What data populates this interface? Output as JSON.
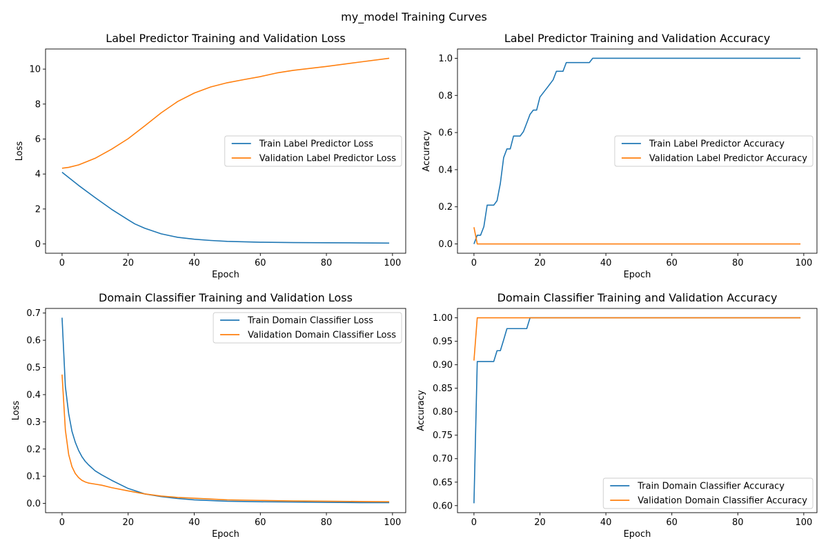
{
  "figure": {
    "suptitle": "my_model Training Curves",
    "colors": {
      "train": "#1f77b4",
      "validation": "#ff7f0e",
      "axis": "#000000",
      "legend_border": "#cccccc"
    }
  },
  "chart_data": [
    {
      "type": "line",
      "title": "Label Predictor Training and Validation Loss",
      "xlabel": "Epoch",
      "ylabel": "Loss",
      "xlim": [
        -5,
        104
      ],
      "ylim": [
        -0.53,
        11.15
      ],
      "xticks": [
        0,
        20,
        40,
        60,
        80,
        100
      ],
      "xtick_labels": [
        "0",
        "20",
        "40",
        "60",
        "80",
        "100"
      ],
      "yticks": [
        0,
        2,
        4,
        6,
        8,
        10
      ],
      "ytick_labels": [
        "0",
        "2",
        "4",
        "6",
        "8",
        "10"
      ],
      "grid": false,
      "legend_position": "center-right",
      "series": [
        {
          "name": "Train Label Predictor Loss",
          "x": [
            0,
            2,
            5,
            10,
            15,
            20,
            22,
            25,
            30,
            35,
            40,
            45,
            50,
            60,
            70,
            80,
            90,
            99
          ],
          "y": [
            4.1,
            3.8,
            3.35,
            2.65,
            1.98,
            1.38,
            1.15,
            0.9,
            0.58,
            0.38,
            0.27,
            0.2,
            0.15,
            0.1,
            0.08,
            0.07,
            0.06,
            0.05
          ]
        },
        {
          "name": "Validation Label Predictor Loss",
          "x": [
            0,
            2,
            5,
            10,
            15,
            20,
            25,
            30,
            35,
            40,
            45,
            50,
            55,
            60,
            65,
            70,
            80,
            90,
            99
          ],
          "y": [
            4.33,
            4.38,
            4.52,
            4.9,
            5.42,
            6.02,
            6.75,
            7.5,
            8.15,
            8.63,
            8.98,
            9.22,
            9.4,
            9.57,
            9.78,
            9.93,
            10.15,
            10.4,
            10.62
          ]
        }
      ]
    },
    {
      "type": "line",
      "title": "Label Predictor Training and Validation Accuracy",
      "xlabel": "Epoch",
      "ylabel": "Accuracy",
      "xlim": [
        -5,
        104
      ],
      "ylim": [
        -0.05,
        1.05
      ],
      "xticks": [
        0,
        20,
        40,
        60,
        80,
        100
      ],
      "xtick_labels": [
        "0",
        "20",
        "40",
        "60",
        "80",
        "100"
      ],
      "yticks": [
        0.0,
        0.2,
        0.4,
        0.6,
        0.8,
        1.0
      ],
      "ytick_labels": [
        "0.0",
        "0.2",
        "0.4",
        "0.6",
        "0.8",
        "1.0"
      ],
      "grid": false,
      "legend_position": "center-right",
      "series": [
        {
          "name": "Train Label Predictor Accuracy",
          "x": [
            0,
            1,
            2,
            3,
            4,
            5,
            6,
            7,
            8,
            9,
            10,
            11,
            12,
            13,
            14,
            15,
            16,
            17,
            18,
            19,
            20,
            22,
            24,
            25,
            26,
            27,
            28,
            29,
            30,
            31,
            32,
            33,
            34,
            35,
            36,
            99
          ],
          "y": [
            0.0,
            0.047,
            0.047,
            0.093,
            0.209,
            0.209,
            0.209,
            0.233,
            0.326,
            0.465,
            0.512,
            0.512,
            0.581,
            0.581,
            0.581,
            0.605,
            0.651,
            0.698,
            0.721,
            0.721,
            0.791,
            0.837,
            0.884,
            0.93,
            0.93,
            0.93,
            0.977,
            0.977,
            0.977,
            0.977,
            0.977,
            0.977,
            0.977,
            0.977,
            1.0,
            1.0
          ]
        },
        {
          "name": "Validation Label Predictor Accuracy",
          "x": [
            0,
            1,
            2,
            99
          ],
          "y": [
            0.09,
            0.0,
            0.0,
            0.0
          ]
        }
      ]
    },
    {
      "type": "line",
      "title": "Domain Classifier Training and Validation Loss",
      "xlabel": "Epoch",
      "ylabel": "Loss",
      "xlim": [
        -5,
        104
      ],
      "ylim": [
        -0.034,
        0.717
      ],
      "xticks": [
        0,
        20,
        40,
        60,
        80,
        100
      ],
      "xtick_labels": [
        "0",
        "20",
        "40",
        "60",
        "80",
        "100"
      ],
      "yticks": [
        0.0,
        0.1,
        0.2,
        0.3,
        0.4,
        0.5,
        0.6,
        0.7
      ],
      "ytick_labels": [
        "0.0",
        "0.1",
        "0.2",
        "0.3",
        "0.4",
        "0.5",
        "0.6",
        "0.7"
      ],
      "grid": false,
      "legend_position": "top-right",
      "series": [
        {
          "name": "Train Domain Classifier Loss",
          "x": [
            0,
            1,
            2,
            3,
            4,
            5,
            6,
            7,
            8,
            10,
            12,
            15,
            20,
            25,
            30,
            35,
            40,
            50,
            60,
            70,
            80,
            90,
            99
          ],
          "y": [
            0.683,
            0.43,
            0.33,
            0.265,
            0.225,
            0.195,
            0.172,
            0.155,
            0.142,
            0.12,
            0.105,
            0.085,
            0.055,
            0.035,
            0.025,
            0.018,
            0.013,
            0.008,
            0.006,
            0.005,
            0.004,
            0.003,
            0.003
          ]
        },
        {
          "name": "Validation Domain Classifier Loss",
          "x": [
            0,
            1,
            2,
            3,
            4,
            5,
            6,
            7,
            8,
            10,
            12,
            15,
            20,
            25,
            30,
            35,
            40,
            50,
            60,
            70,
            80,
            90,
            99
          ],
          "y": [
            0.474,
            0.27,
            0.18,
            0.135,
            0.11,
            0.095,
            0.085,
            0.079,
            0.075,
            0.071,
            0.067,
            0.058,
            0.046,
            0.035,
            0.027,
            0.022,
            0.019,
            0.013,
            0.011,
            0.009,
            0.008,
            0.007,
            0.006
          ]
        }
      ]
    },
    {
      "type": "line",
      "title": "Domain Classifier Training and Validation Accuracy",
      "xlabel": "Epoch",
      "ylabel": "Accuracy",
      "xlim": [
        -5,
        104
      ],
      "ylim": [
        0.585,
        1.02
      ],
      "xticks": [
        0,
        20,
        40,
        60,
        80,
        100
      ],
      "xtick_labels": [
        "0",
        "20",
        "40",
        "60",
        "80",
        "100"
      ],
      "yticks": [
        0.6,
        0.65,
        0.7,
        0.75,
        0.8,
        0.85,
        0.9,
        0.95,
        1.0
      ],
      "ytick_labels": [
        "0.60",
        "0.65",
        "0.70",
        "0.75",
        "0.80",
        "0.85",
        "0.90",
        "0.95",
        "1.00"
      ],
      "grid": false,
      "legend_position": "bottom-right",
      "series": [
        {
          "name": "Train Domain Classifier Accuracy",
          "x": [
            0,
            1,
            2,
            3,
            4,
            5,
            6,
            7,
            8,
            9,
            10,
            11,
            12,
            13,
            14,
            15,
            16,
            17,
            99
          ],
          "y": [
            0.605,
            0.907,
            0.907,
            0.907,
            0.907,
            0.907,
            0.907,
            0.93,
            0.93,
            0.953,
            0.977,
            0.977,
            0.977,
            0.977,
            0.977,
            0.977,
            0.977,
            1.0,
            1.0
          ]
        },
        {
          "name": "Validation Domain Classifier Accuracy",
          "x": [
            0,
            1,
            2,
            99
          ],
          "y": [
            0.909,
            1.0,
            1.0,
            1.0
          ]
        }
      ]
    }
  ]
}
